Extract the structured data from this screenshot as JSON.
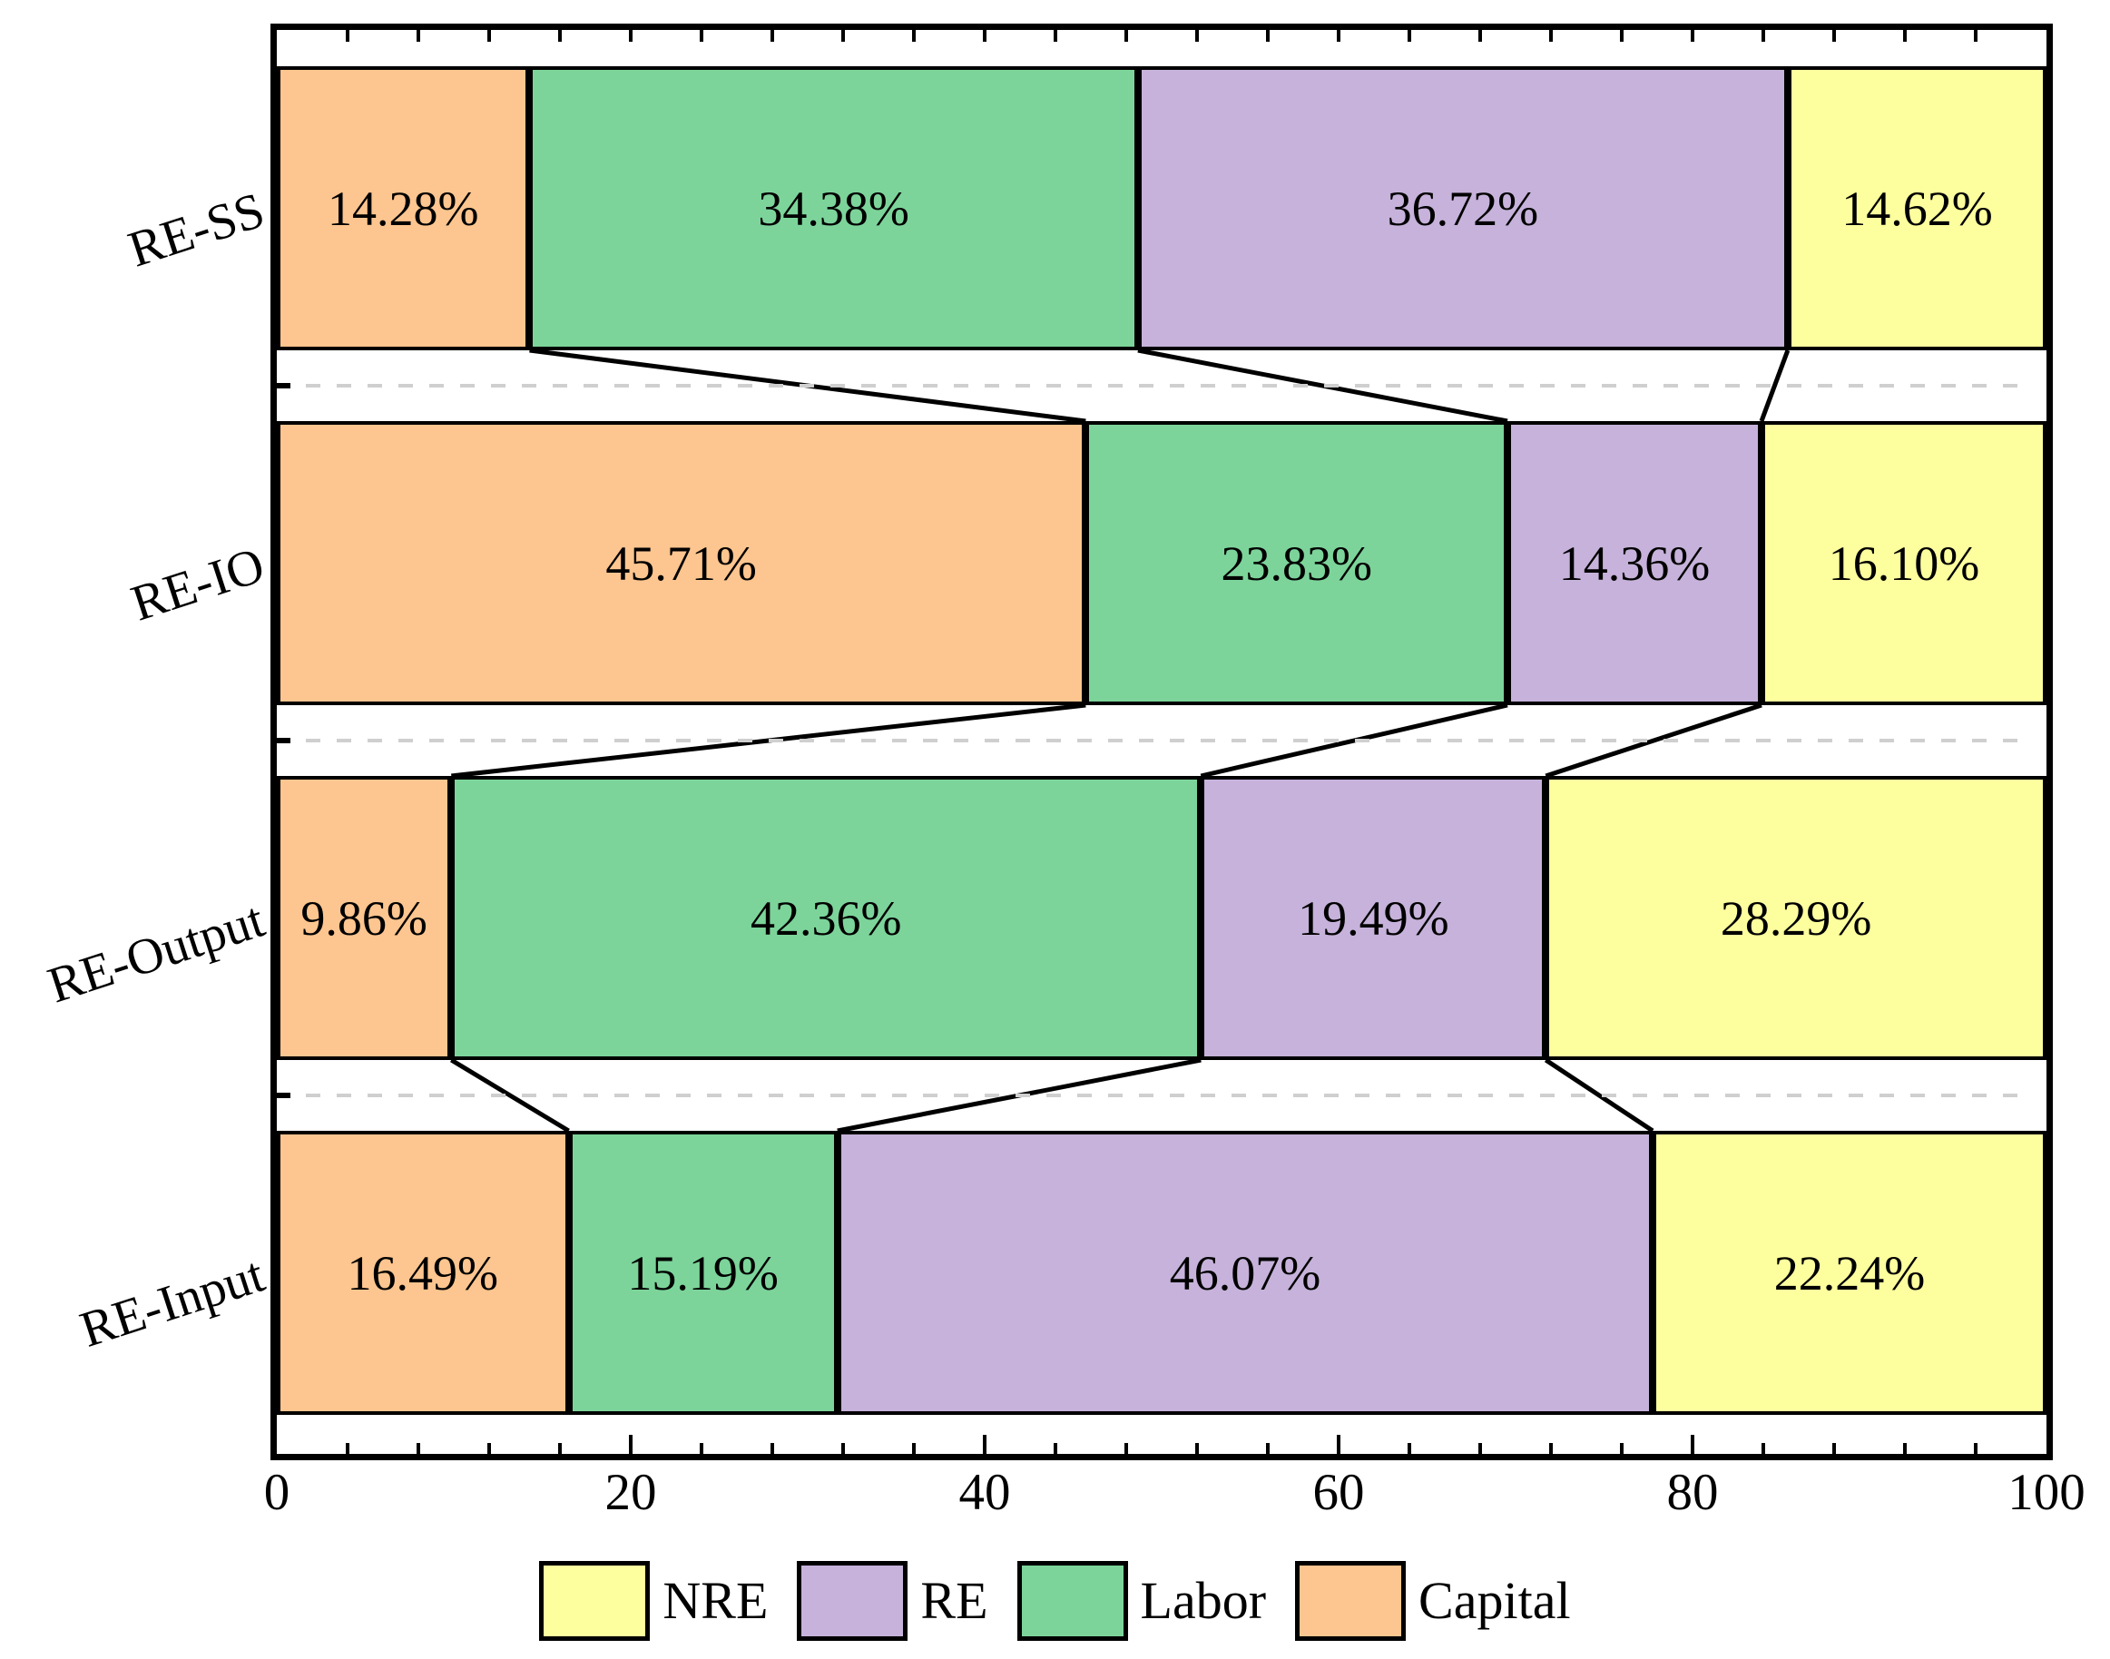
{
  "chart_data": {
    "type": "bar",
    "orientation": "horizontal",
    "stacked": true,
    "title": "",
    "xlabel": "",
    "ylabel": "",
    "categories": [
      "RE-SS",
      "RE-IO",
      "RE-Output",
      "RE-Input"
    ],
    "series": [
      {
        "name": "Capital",
        "color": "#FDC58F",
        "values": [
          14.28,
          45.71,
          9.86,
          16.49
        ]
      },
      {
        "name": "Labor",
        "color": "#7CD49A",
        "values": [
          34.38,
          23.83,
          42.36,
          15.19
        ]
      },
      {
        "name": "RE",
        "color": "#C6B2DA",
        "values": [
          36.72,
          14.36,
          19.49,
          46.07
        ]
      },
      {
        "name": "NRE",
        "color": "#FDFE9E",
        "values": [
          14.62,
          16.1,
          28.29,
          22.24
        ]
      }
    ],
    "value_label_suffix": "%",
    "value_labels": [
      [
        "14.28%",
        "34.38%",
        "36.72%",
        "14.62%"
      ],
      [
        "45.71%",
        "23.83%",
        "14.36%",
        "16.10%"
      ],
      [
        "9.86%",
        "42.36%",
        "19.49%",
        "28.29%"
      ],
      [
        "16.49%",
        "15.19%",
        "46.07%",
        "22.24%"
      ]
    ],
    "xlim": [
      0,
      100
    ],
    "x_tick_labels": [
      "0",
      "20",
      "40",
      "60",
      "80",
      "100"
    ],
    "x_major_step": 20,
    "x_minor_step": 4,
    "separator_style": "dashed",
    "separator_color": "#cfcfcf",
    "connector_color": "#000000",
    "bar_edge_color": "#000000",
    "legend": {
      "position": "bottom",
      "entries": [
        "NRE",
        "RE",
        "Labor",
        "Capital"
      ]
    }
  }
}
